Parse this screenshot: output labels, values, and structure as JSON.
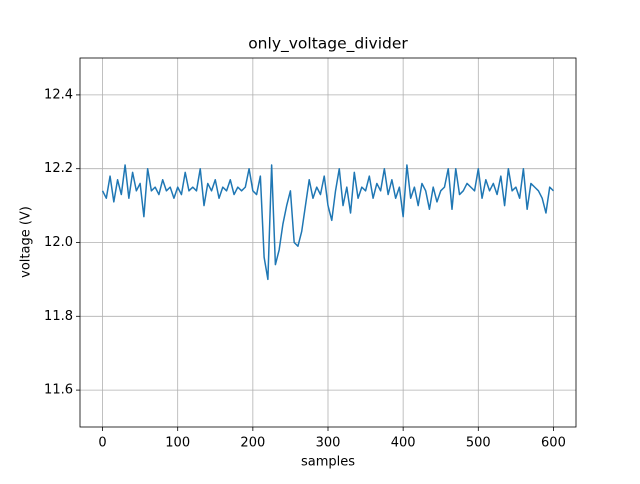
{
  "chart_data": {
    "type": "line",
    "title": "only_voltage_divider",
    "x_label": "samples",
    "y_label": "voltage (V)",
    "x": [
      0,
      5,
      10,
      15,
      20,
      25,
      30,
      35,
      40,
      45,
      50,
      55,
      60,
      65,
      70,
      75,
      80,
      85,
      90,
      95,
      100,
      105,
      110,
      115,
      120,
      125,
      130,
      135,
      140,
      145,
      150,
      155,
      160,
      165,
      170,
      175,
      180,
      185,
      190,
      195,
      200,
      205,
      210,
      215,
      220,
      225,
      230,
      235,
      240,
      245,
      250,
      255,
      260,
      265,
      270,
      275,
      280,
      285,
      290,
      295,
      300,
      305,
      310,
      315,
      320,
      325,
      330,
      335,
      340,
      345,
      350,
      355,
      360,
      365,
      370,
      375,
      380,
      385,
      390,
      395,
      400,
      405,
      410,
      415,
      420,
      425,
      430,
      435,
      440,
      445,
      450,
      455,
      460,
      465,
      470,
      475,
      480,
      485,
      490,
      495,
      500,
      505,
      510,
      515,
      520,
      525,
      530,
      535,
      540,
      545,
      550,
      555,
      560,
      565,
      570,
      575,
      580,
      585,
      590,
      595,
      600
    ],
    "values": [
      12.14,
      12.12,
      12.18,
      12.11,
      12.17,
      12.13,
      12.21,
      12.12,
      12.19,
      12.14,
      12.16,
      12.07,
      12.2,
      12.14,
      12.15,
      12.13,
      12.17,
      12.14,
      12.15,
      12.12,
      12.15,
      12.13,
      12.19,
      12.14,
      12.15,
      12.14,
      12.2,
      12.1,
      12.16,
      12.14,
      12.17,
      12.12,
      12.15,
      12.14,
      12.17,
      12.13,
      12.15,
      12.14,
      12.15,
      12.2,
      12.14,
      12.13,
      12.18,
      11.96,
      11.9,
      12.21,
      11.94,
      11.98,
      12.05,
      12.1,
      12.14,
      12.0,
      11.99,
      12.03,
      12.1,
      12.17,
      12.12,
      12.15,
      12.13,
      12.18,
      12.1,
      12.06,
      12.14,
      12.2,
      12.1,
      12.15,
      12.08,
      12.19,
      12.12,
      12.15,
      12.14,
      12.18,
      12.12,
      12.16,
      12.14,
      12.2,
      12.13,
      12.17,
      12.12,
      12.15,
      12.07,
      12.21,
      12.12,
      12.15,
      12.1,
      12.16,
      12.14,
      12.09,
      12.15,
      12.11,
      12.14,
      12.15,
      12.2,
      12.09,
      12.2,
      12.13,
      12.14,
      12.16,
      12.15,
      12.14,
      12.2,
      12.12,
      12.17,
      12.14,
      12.16,
      12.13,
      12.18,
      12.1,
      12.2,
      12.14,
      12.15,
      12.12,
      12.2,
      12.09,
      12.16,
      12.15,
      12.14,
      12.12,
      12.08,
      12.15,
      12.14
    ],
    "color": "#1f77b4",
    "xlim": [
      -30,
      630
    ],
    "ylim": [
      11.5,
      12.5
    ],
    "xticks": [
      0,
      100,
      200,
      300,
      400,
      500,
      600
    ],
    "yticks": [
      11.6,
      11.8,
      {
        "value": 12,
        "label": "12.0"
      },
      12.2,
      12.4
    ],
    "grid": true
  }
}
